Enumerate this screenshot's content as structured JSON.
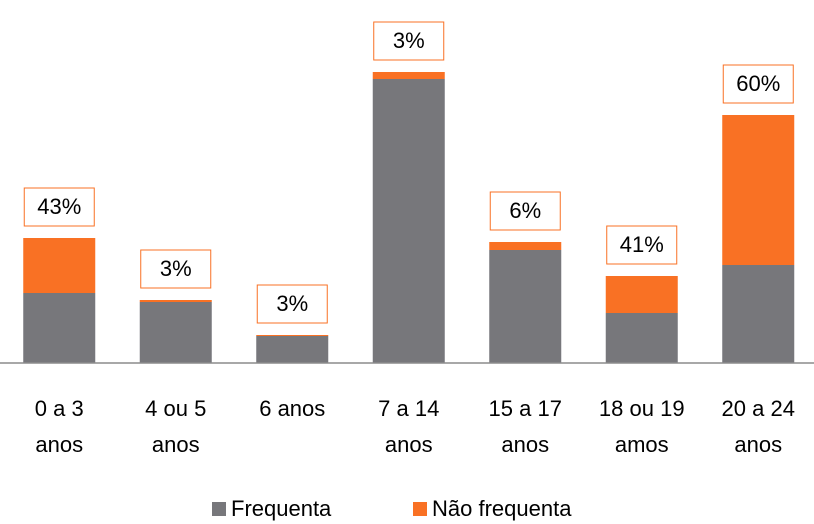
{
  "chart_data": {
    "type": "stacked_bar",
    "categories": [
      [
        "0 a 3",
        "anos"
      ],
      [
        "4 ou 5",
        "anos"
      ],
      [
        "6 anos"
      ],
      [
        "7 a 14",
        "anos"
      ],
      [
        "15 a 17",
        "anos"
      ],
      [
        "18 ou 19",
        "amos"
      ],
      [
        "20 a 24",
        "anos"
      ]
    ],
    "series": [
      {
        "name": "Frequenta",
        "color": "#77777b",
        "values": [
          70,
          61,
          27,
          284,
          113,
          50,
          98
        ]
      },
      {
        "name": "Não frequenta",
        "color": "#f97124",
        "values": [
          55,
          2,
          1,
          7,
          8,
          37,
          150
        ]
      }
    ],
    "data_labels": {
      "values": [
        43,
        3,
        3,
        3,
        6,
        41,
        60
      ],
      "value_labels": [
        "43%",
        "3%",
        "3%",
        "3%",
        "6%",
        "41%",
        "60%"
      ]
    },
    "ylim": [
      0,
      300
    ],
    "legend": "bottom"
  }
}
